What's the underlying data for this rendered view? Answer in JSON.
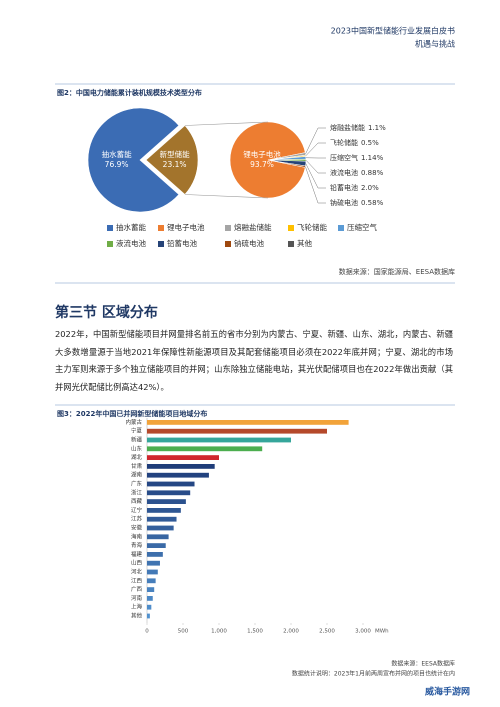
{
  "header": {
    "title": "2023中国新型储能行业发展白皮书",
    "subtitle": "机遇与挑战"
  },
  "chart_data": [
    {
      "type": "pie",
      "title": "图2：中国电力储能累计装机规模技术类型分布",
      "pies": [
        {
          "labels": [
            "抽水蓄能",
            "新型储能"
          ],
          "values": [
            76.9,
            23.1
          ],
          "value_labels": [
            "76.9%",
            "23.1%"
          ],
          "colors": [
            "#3b6cb4",
            "#a3742c"
          ]
        },
        {
          "labels": [
            "锂电子电池",
            "熔融盐储能",
            "飞轮储能",
            "压缩空气",
            "液流电池",
            "铅蓄电池",
            "钠硫电池"
          ],
          "values": [
            93.7,
            1.1,
            0.5,
            1.14,
            0.88,
            2.0,
            0.58
          ],
          "value_labels": [
            "93.7%",
            "1.1%",
            "0.5%",
            "1.14%",
            "0.88%",
            "2.0%",
            "0.58%"
          ],
          "colors": [
            "#ed7d31",
            "#a5a5a5",
            "#ffc000",
            "#5b9bd5",
            "#70ad47",
            "#264478",
            "#9e480e"
          ]
        }
      ],
      "legend": [
        {
          "name": "抽水蓄能",
          "color": "#3b6cb4"
        },
        {
          "name": "锂电子电池",
          "color": "#ed7d31"
        },
        {
          "name": "熔融盐储能",
          "color": "#a5a5a5"
        },
        {
          "name": "飞轮储能",
          "color": "#ffc000"
        },
        {
          "name": "压缩空气",
          "color": "#5b9bd5"
        },
        {
          "name": "液流电池",
          "color": "#70ad47"
        },
        {
          "name": "铅蓄电池",
          "color": "#264478"
        },
        {
          "name": "钠硫电池",
          "color": "#9e480e"
        },
        {
          "name": "其他",
          "color": "#555555"
        }
      ],
      "source": "数据来源：国家能源局、EESA数据库"
    },
    {
      "type": "bar",
      "orientation": "horizontal",
      "title": "图3：2022年中国已并网新型储能项目地域分布",
      "categories": [
        "内蒙古",
        "宁夏",
        "新疆",
        "山东",
        "湖北",
        "甘肃",
        "湖南",
        "广东",
        "浙江",
        "西藏",
        "辽宁",
        "江苏",
        "安徽",
        "海南",
        "青海",
        "福建",
        "山西",
        "河北",
        "江西",
        "广西",
        "河南",
        "上海",
        "其他"
      ],
      "values": [
        2800,
        2500,
        2000,
        1600,
        1000,
        940,
        860,
        660,
        600,
        540,
        470,
        410,
        370,
        300,
        260,
        220,
        180,
        150,
        120,
        100,
        80,
        60,
        40
      ],
      "colors": [
        "#f2a33a",
        "#b5492b",
        "#35a69b",
        "#4cae4f",
        "#d0262d",
        "#1f3d7a",
        "#22427f",
        "#254784",
        "#284c89",
        "#2b518e",
        "#2e5693",
        "#315b98",
        "#34609d",
        "#3765a2",
        "#3a6aa7",
        "#3d6fac",
        "#4074b1",
        "#4379b6",
        "#467ebb",
        "#4983c0",
        "#4c88c5",
        "#4f8dca",
        "#5292cf"
      ],
      "xlim": [
        0,
        3000
      ],
      "xticks": [
        0,
        500,
        {
          "value": 1000,
          "label": "1,000"
        },
        {
          "value": 1500,
          "label": "1,500"
        },
        {
          "value": 2000,
          "label": "2,000"
        },
        {
          "value": 2500,
          "label": "2,500"
        },
        {
          "value": 3000,
          "label": "3,000"
        }
      ],
      "xlabel": "MWh",
      "grid": false
    }
  ],
  "section": {
    "title": "第三节  区域分布",
    "paragraph": "2022年，中国新型储能项目并网量排名前五的省市分别为内蒙古、宁夏、新疆、山东、湖北，内蒙古、新疆大多数增量源于当地2021年保障性新能源项目及其配套储能项目必须在2022年底并网；宁夏、湖北的市场主力军则来源于多个独立储能项目的并网；山东除独立储能电站，其光伏配储项目也在2022年做出贡献（其并网光伏配储比例高达42%）。"
  },
  "footer": {
    "source": "数据来源：EESA数据库",
    "note": "数据统计说明：2023年1月前两周宣布并网的项目也统计在内",
    "watermark": "威海手游网"
  }
}
